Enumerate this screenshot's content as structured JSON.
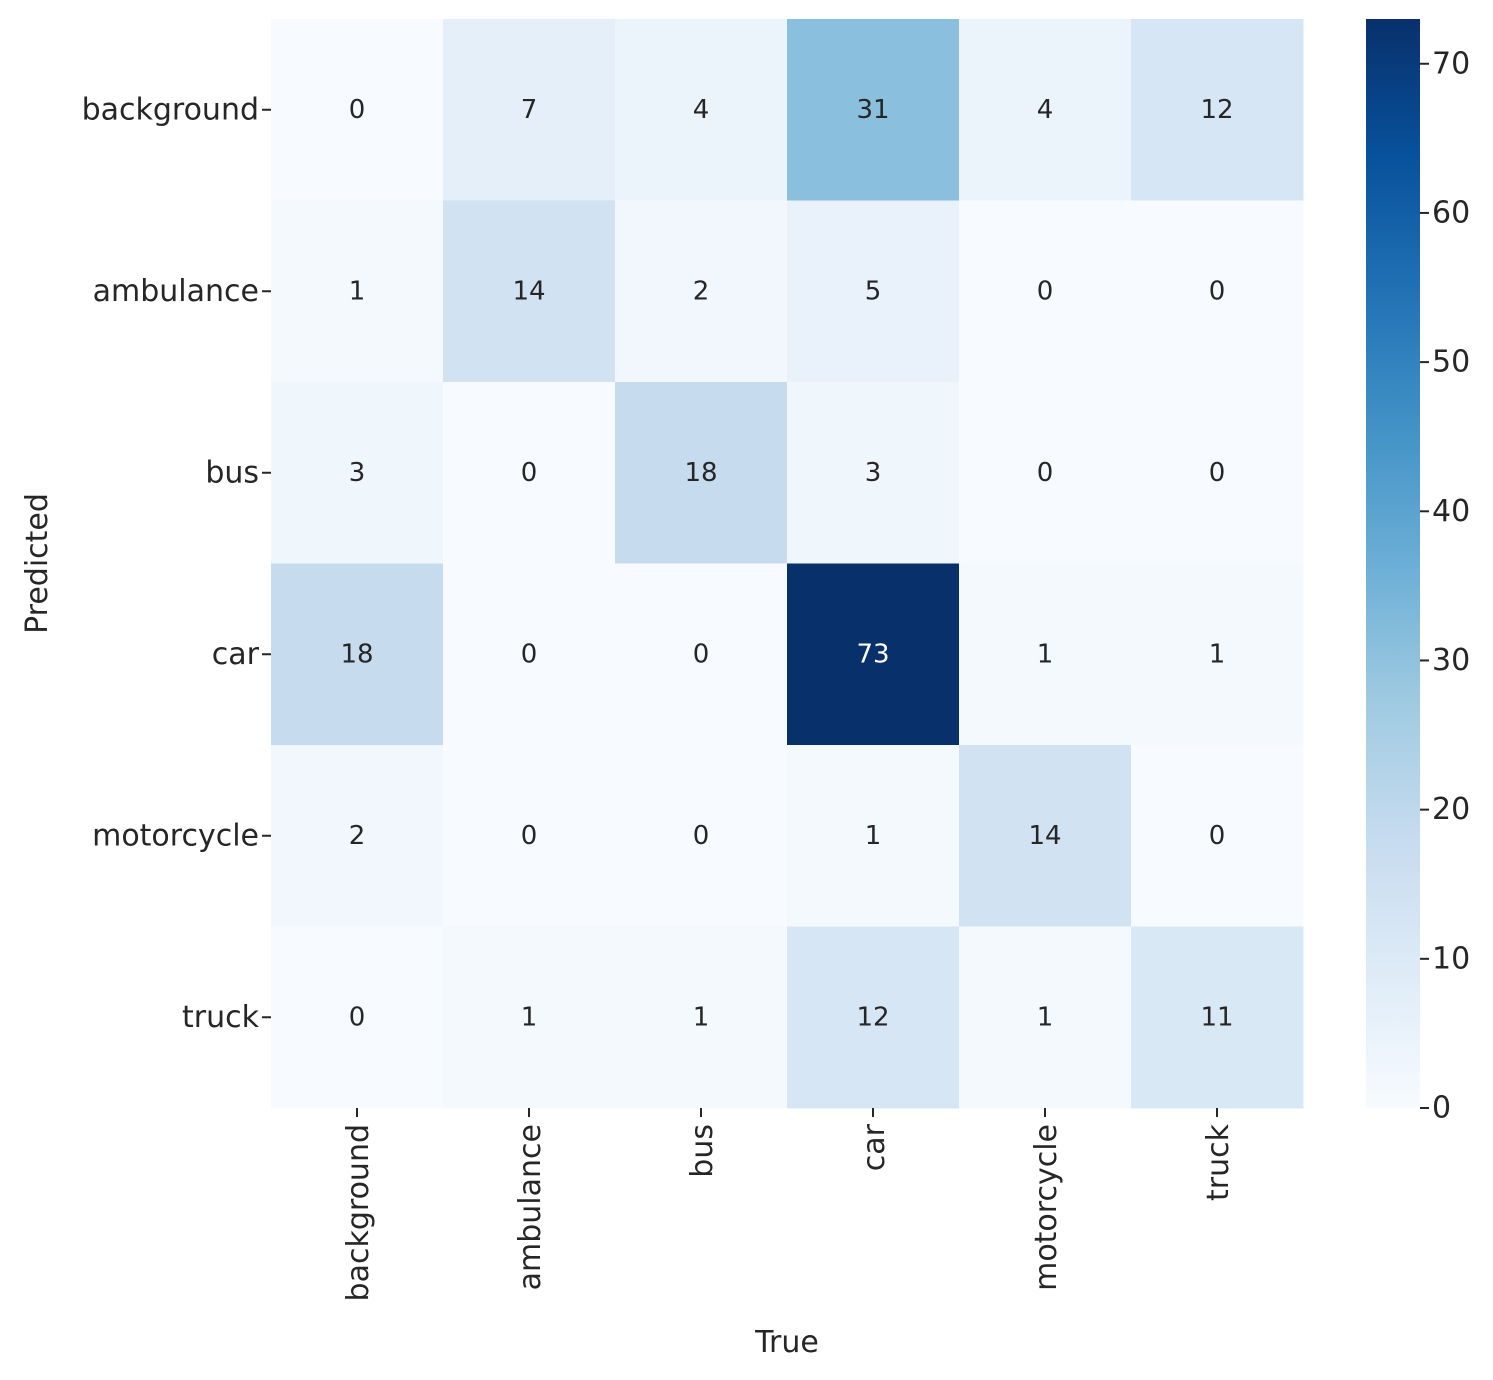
{
  "chart_data": {
    "type": "heatmap",
    "title": "",
    "xlabel": "True",
    "ylabel": "Predicted",
    "x_categories": [
      "background",
      "ambulance",
      "bus",
      "car",
      "motorcycle",
      "truck"
    ],
    "y_categories": [
      "background",
      "ambulance",
      "bus",
      "car",
      "motorcycle",
      "truck"
    ],
    "values": [
      [
        0,
        7,
        4,
        31,
        4,
        12
      ],
      [
        1,
        14,
        2,
        5,
        0,
        0
      ],
      [
        3,
        0,
        18,
        3,
        0,
        0
      ],
      [
        18,
        0,
        0,
        73,
        1,
        1
      ],
      [
        2,
        0,
        0,
        1,
        14,
        0
      ],
      [
        0,
        1,
        1,
        12,
        1,
        11
      ]
    ],
    "vmin": 0,
    "vmax": 73,
    "colormap": "Blues",
    "colorbar": {
      "ticks": [
        0,
        10,
        20,
        30,
        40,
        50,
        60,
        70
      ]
    },
    "annotations": true,
    "colors": {
      "text_dark": "#262626",
      "text_light": "#ffffff"
    }
  }
}
